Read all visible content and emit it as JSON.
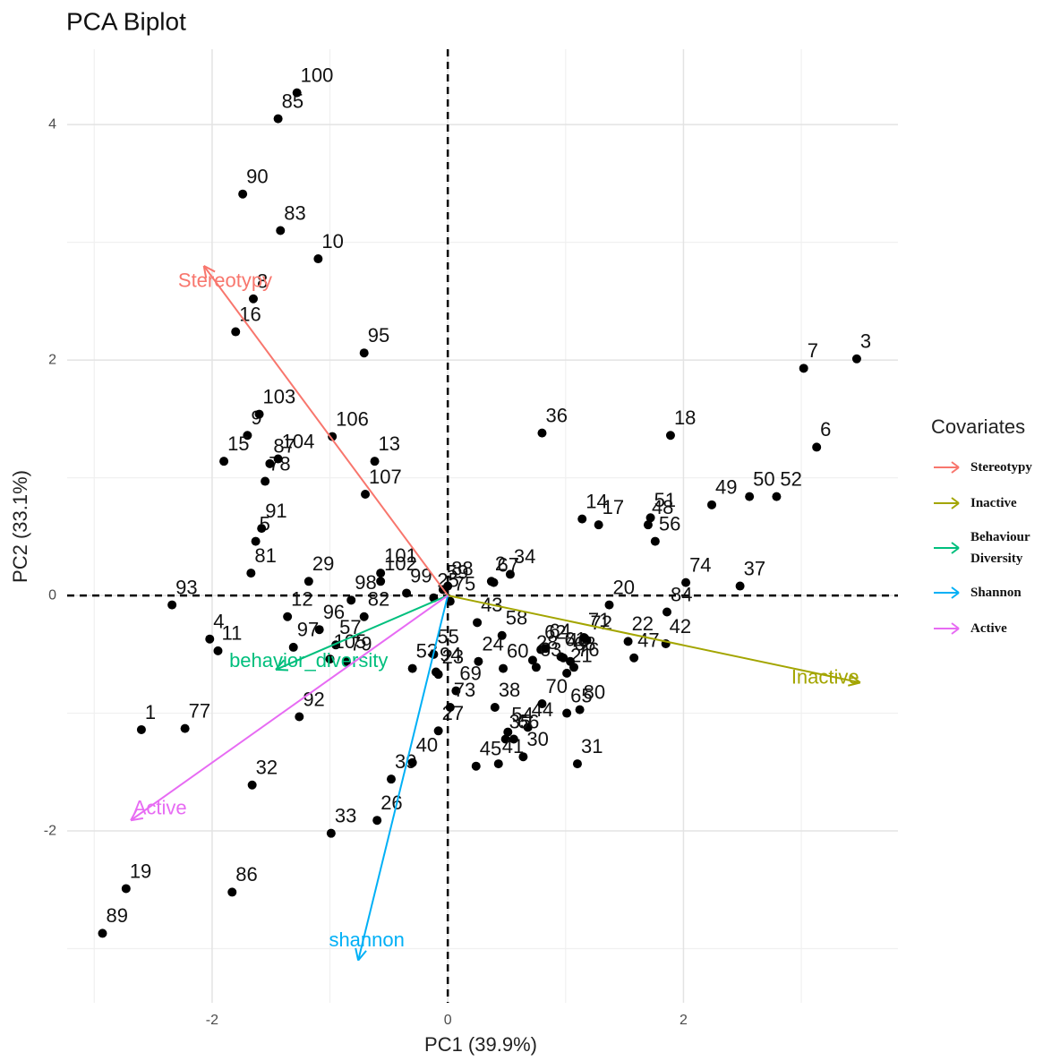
{
  "chart_data": {
    "type": "scatter",
    "title": "PCA Biplot",
    "x_label": "PC1 (39.9%)",
    "y_label": "PC2 (33.1%)",
    "xlim": [
      -3.23,
      3.82
    ],
    "ylim": [
      -3.46,
      4.64
    ],
    "xticks": [
      -2,
      0,
      2
    ],
    "yticks": [
      -2,
      0,
      2,
      4
    ],
    "minor_xticks": [
      -3,
      -1,
      1,
      3
    ],
    "minor_yticks": [
      -3,
      -1,
      1,
      3
    ],
    "grid": true,
    "point_color": "#000000",
    "points": {
      "labels": [
        "1",
        "2",
        "3",
        "4",
        "5",
        "6",
        "7",
        "8",
        "9",
        "10",
        "11",
        "12",
        "13",
        "14",
        "15",
        "16",
        "17",
        "18",
        "19",
        "20",
        "21",
        "22",
        "23",
        "24",
        "25",
        "26",
        "27",
        "28",
        "29",
        "30",
        "31",
        "32",
        "33",
        "34",
        "35",
        "36",
        "37",
        "38",
        "39",
        "40",
        "41",
        "42",
        "43",
        "44",
        "45",
        "46",
        "47",
        "48",
        "49",
        "50",
        "51",
        "52",
        "53",
        "54",
        "55",
        "56",
        "57",
        "58",
        "59",
        "60",
        "61",
        "62",
        "63",
        "64",
        "65",
        "66",
        "67",
        "68",
        "69",
        "70",
        "71",
        "72",
        "73",
        "74",
        "75",
        "76",
        "77",
        "78",
        "79",
        "80",
        "81",
        "82",
        "83",
        "84",
        "85",
        "86",
        "87",
        "88",
        "89",
        "90",
        "91",
        "92",
        "93",
        "94",
        "95",
        "96",
        "97",
        "98",
        "99",
        "100",
        "101",
        "102",
        "103",
        "104",
        "105",
        "106",
        "107"
      ],
      "x": [
        -2.6,
        0.37,
        3.47,
        -2.02,
        -1.63,
        3.13,
        3.02,
        -1.65,
        -1.7,
        -1.1,
        -1.95,
        -1.36,
        -0.62,
        1.14,
        -1.9,
        -1.8,
        1.28,
        1.89,
        -2.73,
        1.37,
        1.01,
        1.53,
        -0.08,
        0.26,
        -0.12,
        -0.6,
        -0.08,
        0.72,
        -1.18,
        0.64,
        1.1,
        -1.66,
        -0.99,
        0.53,
        0.49,
        0.8,
        2.48,
        0.4,
        -0.48,
        -0.3,
        0.43,
        1.85,
        0.25,
        0.68,
        0.24,
        0.98,
        1.58,
        1.7,
        2.24,
        2.56,
        1.72,
        2.79,
        -0.3,
        0.51,
        -0.12,
        1.76,
        -0.95,
        0.46,
        -0.04,
        0.47,
        0.96,
        0.79,
        0.75,
        0.83,
        1.01,
        0.56,
        0.39,
        1.04,
        0.07,
        0.8,
        1.16,
        1.18,
        0.02,
        2.02,
        0.02,
        1.07,
        -2.23,
        -1.55,
        -0.86,
        1.12,
        -1.67,
        -0.71,
        -1.42,
        1.86,
        -1.44,
        -1.83,
        -1.51,
        0.0,
        -2.93,
        -1.74,
        -1.58,
        -1.26,
        -2.34,
        -0.1,
        -0.71,
        -1.09,
        -1.31,
        -0.82,
        -0.35,
        -1.28,
        -0.57,
        -0.57,
        -1.6,
        -1.44,
        -1.0,
        -0.98,
        -0.7
      ],
      "y": [
        -1.14,
        0.12,
        2.01,
        -0.37,
        0.46,
        1.26,
        1.93,
        2.52,
        1.36,
        2.86,
        -0.47,
        -0.18,
        1.14,
        0.65,
        1.14,
        2.24,
        0.6,
        1.36,
        -2.49,
        -0.08,
        -0.66,
        -0.39,
        -0.67,
        -0.56,
        -0.02,
        -1.91,
        -1.15,
        -0.55,
        0.12,
        -1.37,
        -1.43,
        -1.61,
        -2.02,
        0.18,
        -1.22,
        1.38,
        0.08,
        -0.95,
        -1.56,
        -1.42,
        -1.43,
        -0.41,
        -0.23,
        -1.12,
        -1.45,
        -0.53,
        -0.53,
        0.6,
        0.77,
        0.84,
        0.66,
        0.84,
        -0.62,
        -1.16,
        -0.5,
        0.46,
        -0.42,
        -0.34,
        0.05,
        -0.62,
        -0.52,
        -0.46,
        -0.61,
        -0.45,
        -1.0,
        -1.22,
        0.11,
        -0.56,
        -0.81,
        -0.92,
        -0.36,
        -0.38,
        -0.95,
        0.11,
        -0.05,
        -0.61,
        -1.13,
        0.97,
        -0.56,
        -0.97,
        0.19,
        -0.18,
        3.1,
        -0.14,
        4.05,
        -2.52,
        1.12,
        0.08,
        -2.87,
        3.41,
        0.57,
        -1.03,
        -0.08,
        -0.65,
        2.06,
        -0.29,
        -0.44,
        -0.04,
        0.02,
        4.27,
        0.19,
        0.12,
        1.54,
        1.16,
        -0.54,
        1.35,
        0.86
      ]
    },
    "legend_title": "Covariates",
    "loadings": [
      {
        "name": "Stereotypy",
        "label": "Stereotypy",
        "color": "#F8766D",
        "x": -2.07,
        "y": 2.8
      },
      {
        "name": "Inactive",
        "label": "Inactive",
        "color": "#A3A500",
        "x": 3.5,
        "y": -0.74
      },
      {
        "name": "Behaviour Diversity",
        "label": "behavior_diversity",
        "color": "#00BF7D",
        "x": -1.46,
        "y": -0.63
      },
      {
        "name": "Shannon",
        "label": "shannon",
        "color": "#00B0F6",
        "x": -0.76,
        "y": -3.1
      },
      {
        "name": "Active",
        "label": "Active",
        "color": "#E76BF3",
        "x": -2.69,
        "y": -1.91
      }
    ]
  }
}
